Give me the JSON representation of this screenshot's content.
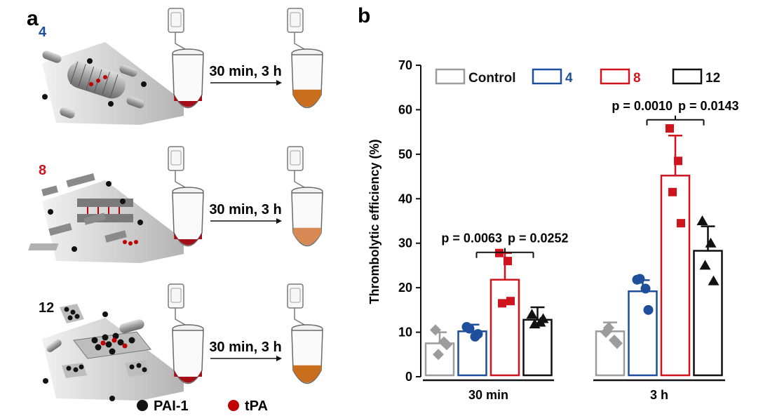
{
  "panel_a": {
    "letter": "a",
    "rows": [
      {
        "label": "4",
        "label_color": "#1f4e9c",
        "condition": "30 min, 3 h",
        "before_color": "#a50d18",
        "after_color": "#c86e1d",
        "after_fill": 0.55,
        "particle": "tube"
      },
      {
        "label": "8",
        "label_color": "#d0141e",
        "condition": "30 min, 3 h",
        "before_color": "#a50d18",
        "after_color": "#d78a55",
        "after_fill": 0.55,
        "particle": "sandwich"
      },
      {
        "label": "12",
        "label_color": "#111111",
        "condition": "30 min, 3 h",
        "before_color": "#a50d18",
        "after_color": "#c86e1d",
        "after_fill": 0.55,
        "particle": "sheet"
      }
    ],
    "legend": [
      {
        "label": "PAI-1",
        "color": "#111111"
      },
      {
        "label": "tPA",
        "color": "#c00000"
      }
    ]
  },
  "chart_data": {
    "panel_letter": "b",
    "type": "bar",
    "ylabel": "Thrombolytic efficiency (%)",
    "ylim": [
      0,
      70
    ],
    "yticks": [
      0,
      10,
      20,
      30,
      40,
      50,
      60,
      70
    ],
    "groups": [
      "30 min",
      "3 h"
    ],
    "series": [
      {
        "name": "Control",
        "color": "#9c9c9c",
        "marker": "diamond",
        "means": [
          7.5,
          10.2
        ],
        "sd": [
          2.5,
          2.0
        ],
        "points": [
          [
            10.5,
            7.8,
            5.0,
            7.2
          ],
          [
            10.0,
            8.2,
            11.0,
            7.5
          ]
        ]
      },
      {
        "name": "4",
        "color": "#1f4e9c",
        "marker": "circle",
        "means": [
          10.2,
          19.2
        ],
        "sd": [
          1.5,
          2.5
        ],
        "points": [
          [
            11.2,
            9.0,
            10.8,
            9.6
          ],
          [
            21.8,
            19.8,
            22.0,
            15.0
          ]
        ]
      },
      {
        "name": "8",
        "color": "#d0141e",
        "marker": "square",
        "means": [
          21.8,
          45.2
        ],
        "sd": [
          6.0,
          9.0
        ],
        "points": [
          [
            27.8,
            26.0,
            16.5,
            17.0
          ],
          [
            55.8,
            48.5,
            41.5,
            34.5
          ]
        ]
      },
      {
        "name": "12",
        "color": "#111111",
        "marker": "triangle",
        "means": [
          12.8,
          28.3
        ],
        "sd": [
          2.8,
          5.5
        ],
        "points": [
          [
            14.0,
            12.2,
            11.8,
            13.0
          ],
          [
            35.0,
            30.0,
            25.0,
            21.5
          ]
        ]
      }
    ],
    "annotations": [
      {
        "group": 0,
        "text1": "p = 0.0063",
        "text2": "p = 0.0252",
        "y": 30
      },
      {
        "group": 1,
        "text1": "p = 0.0010",
        "text2": "p = 0.0143",
        "y": 59
      }
    ],
    "legend_position": "top"
  }
}
